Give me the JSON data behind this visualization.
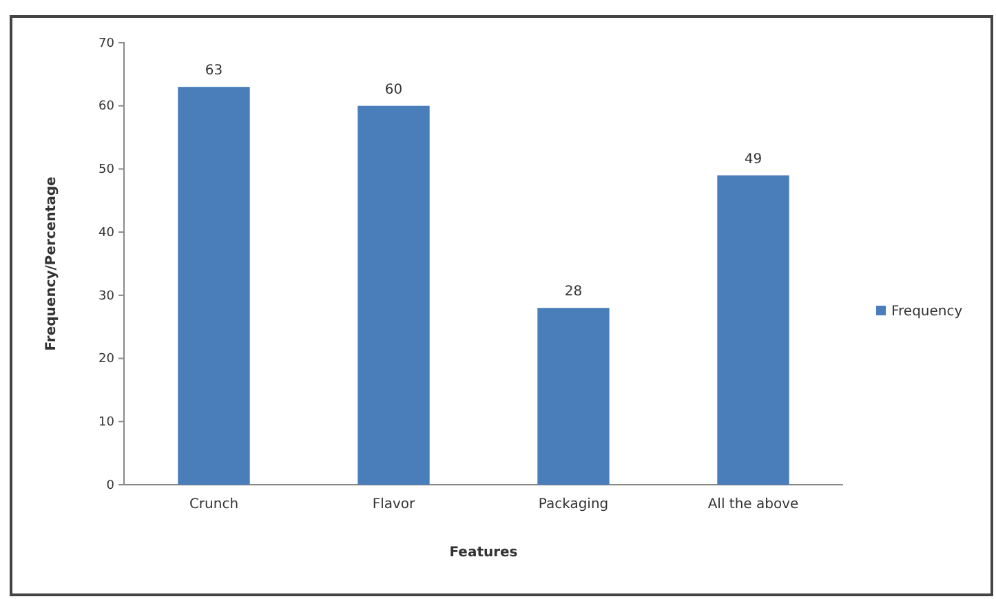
{
  "chart_data": {
    "type": "bar",
    "xlabel": "Features",
    "ylabel": "Frequency/Percentage",
    "categories": [
      "Crunch",
      "Flavor",
      "Packaging",
      "All the above"
    ],
    "series": [
      {
        "name": "Frequency",
        "color": "#4a7ebb",
        "values": [
          63,
          60,
          28,
          49
        ]
      }
    ],
    "ylim": [
      0,
      70
    ],
    "yticks": [
      0,
      10,
      20,
      30,
      40,
      50,
      60,
      70
    ],
    "data_labels": true,
    "legend": "right",
    "grid": false
  }
}
